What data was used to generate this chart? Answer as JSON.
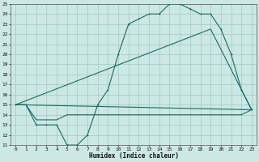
{
  "xlabel": "Humidex (Indice chaleur)",
  "bg_color": "#cce8e4",
  "grid_color": "#a0c8c4",
  "line_color": "#1a6b60",
  "xlim": [
    -0.5,
    23.5
  ],
  "ylim": [
    11,
    25
  ],
  "yticks": [
    11,
    12,
    13,
    14,
    15,
    16,
    17,
    18,
    19,
    20,
    21,
    22,
    23,
    24,
    25
  ],
  "xticks": [
    0,
    1,
    2,
    3,
    4,
    5,
    6,
    7,
    8,
    9,
    10,
    11,
    12,
    13,
    14,
    15,
    16,
    17,
    18,
    19,
    20,
    21,
    22,
    23
  ],
  "line1_x": [
    0,
    1,
    2,
    3,
    4,
    5,
    6,
    7,
    8,
    9,
    10,
    11,
    12,
    13,
    14,
    15,
    16,
    17,
    18,
    19,
    20,
    21,
    22,
    23
  ],
  "line1_y": [
    15,
    15,
    13,
    13,
    13,
    11,
    11,
    12,
    15,
    16.5,
    20,
    23,
    23.5,
    24,
    24,
    25,
    25,
    24.5,
    24,
    24,
    22.5,
    20,
    16.5,
    14.5
  ],
  "line2_x": [
    0,
    1,
    2,
    3,
    4,
    5,
    6,
    7,
    8,
    9,
    10,
    11,
    12,
    13,
    14,
    15,
    16,
    17,
    18,
    19,
    20,
    21,
    22,
    23
  ],
  "line2_y": [
    15,
    15,
    13.5,
    13.5,
    13.5,
    14,
    14,
    14,
    14,
    14,
    14,
    14,
    14,
    14,
    14,
    14,
    14,
    14,
    14,
    14,
    14,
    14,
    14,
    14.5
  ],
  "line3_x": [
    0,
    23
  ],
  "line3_y": [
    15,
    14.5
  ],
  "line4_x": [
    0,
    19,
    23
  ],
  "line4_y": [
    15,
    22.5,
    14.5
  ]
}
